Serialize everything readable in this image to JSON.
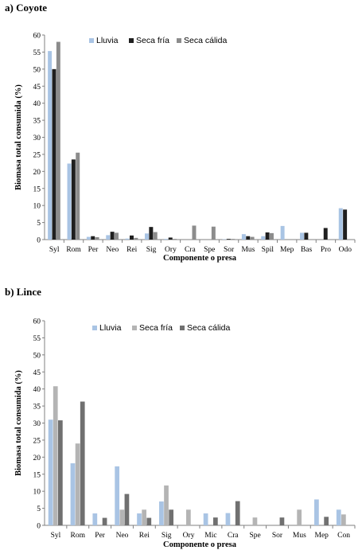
{
  "chart_data": [
    {
      "type": "bar",
      "panel_title": "a) Coyote",
      "xlabel": "Componente o presa",
      "ylabel": "Biomasa total consumida (%)",
      "ylim": [
        0,
        60
      ],
      "yticks": [
        0,
        5,
        10,
        15,
        20,
        25,
        30,
        35,
        40,
        45,
        50,
        55,
        60
      ],
      "categories": [
        "Syl",
        "Rom",
        "Per",
        "Neo",
        "Rei",
        "Sig",
        "Ory",
        "Cra",
        "Spe",
        "Sor",
        "Mus",
        "Spil",
        "Mep",
        "Bas",
        "Pro",
        "Odo"
      ],
      "series": [
        {
          "name": "Lluvia",
          "color": "#a9c4e4",
          "values": [
            55.3,
            22.3,
            0.8,
            1.3,
            0.3,
            1.8,
            0.2,
            0,
            0,
            0.1,
            1.6,
            1.0,
            4.0,
            2.0,
            0,
            9.2
          ]
        },
        {
          "name": "Seca fría",
          "color": "#1f1f1f",
          "values": [
            50.0,
            23.5,
            1.0,
            2.3,
            1.2,
            3.7,
            0.6,
            0,
            0,
            0.2,
            1.0,
            2.1,
            0,
            2.0,
            3.4,
            8.8
          ]
        },
        {
          "name": "Seca cálida",
          "color": "#8c8c8c",
          "values": [
            58.0,
            25.5,
            0.7,
            2.0,
            0.5,
            2.2,
            0.2,
            4.1,
            3.8,
            0.2,
            0.8,
            1.9,
            0,
            0,
            0,
            0
          ]
        }
      ],
      "legend": "top"
    },
    {
      "type": "bar",
      "panel_title": "b) Lince",
      "xlabel": "Componente o presa",
      "ylabel": "Biomasa total consumida (%)",
      "ylim": [
        0,
        60
      ],
      "yticks": [
        0,
        5,
        10,
        15,
        20,
        25,
        30,
        35,
        40,
        45,
        50,
        55,
        60
      ],
      "categories": [
        "Syl",
        "Rom",
        "Per",
        "Neo",
        "Rei",
        "Sig",
        "Ory",
        "Mic",
        "Cra",
        "Spe",
        "Sor",
        "Mus",
        "Mep",
        "Con"
      ],
      "series": [
        {
          "name": "Lluvia",
          "color": "#a9c4e4",
          "values": [
            31.0,
            18.2,
            3.5,
            17.3,
            3.5,
            7.0,
            0,
            3.5,
            3.6,
            0,
            0,
            0,
            7.6,
            4.6
          ]
        },
        {
          "name": "Seca fría",
          "color": "#b4b4b4",
          "values": [
            40.8,
            24.0,
            0,
            4.6,
            4.6,
            11.7,
            4.6,
            0,
            0,
            2.3,
            0,
            4.6,
            0,
            3.2
          ]
        },
        {
          "name": "Seca cálida",
          "color": "#707070",
          "values": [
            30.8,
            36.3,
            2.2,
            9.2,
            2.2,
            4.6,
            0,
            2.3,
            7.1,
            0,
            2.3,
            0,
            2.5,
            0
          ]
        }
      ],
      "legend": "top"
    }
  ]
}
